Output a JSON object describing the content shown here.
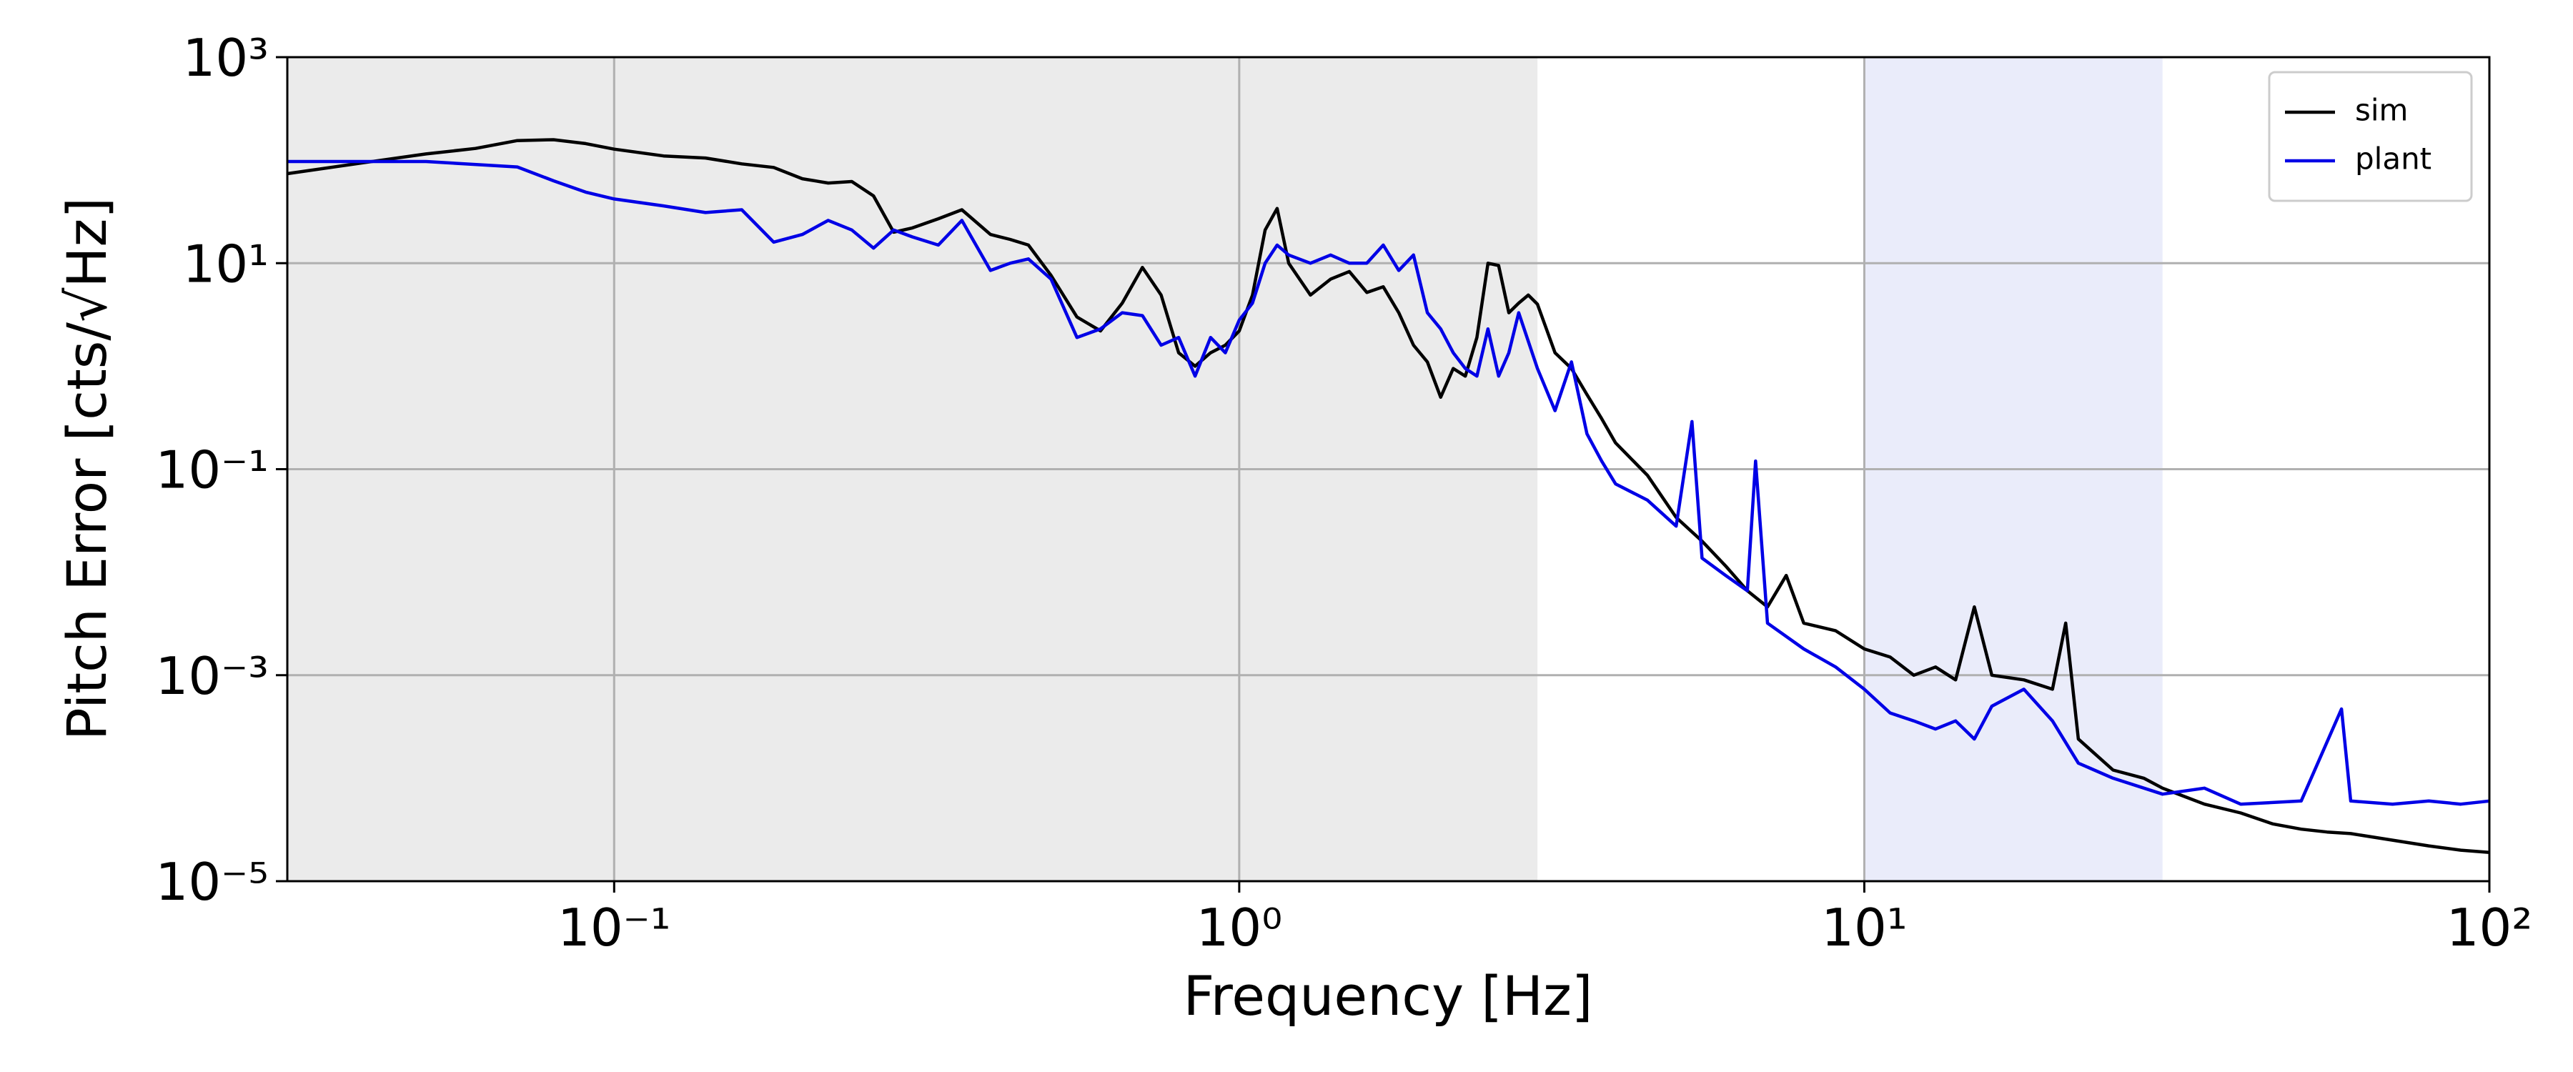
{
  "chart_data": {
    "type": "line",
    "xlabel": "Frequency [Hz]",
    "ylabel": "Pitch Error [cts/√Hz]",
    "xscale": "log",
    "yscale": "log",
    "grid": true,
    "legend": "upper right",
    "xlim": [
      0.03,
      100
    ],
    "ylim": [
      1e-05,
      1000
    ],
    "xticks": [
      {
        "value": 0.1,
        "label": "10⁻¹"
      },
      {
        "value": 1,
        "label": "10⁰"
      },
      {
        "value": 10,
        "label": "10¹"
      },
      {
        "value": 100,
        "label": "10²"
      }
    ],
    "yticks": [
      {
        "value": 1e-05,
        "label": "10⁻⁵"
      },
      {
        "value": 0.001,
        "label": "10⁻³"
      },
      {
        "value": 0.1,
        "label": "10⁻¹"
      },
      {
        "value": 10,
        "label": "10¹"
      },
      {
        "value": 1000,
        "label": "10³"
      }
    ],
    "shaded_regions": [
      {
        "x": [
          0.03,
          3
        ],
        "color": "#ebebeb"
      },
      {
        "x": [
          10,
          30
        ],
        "color": "#eaecfa"
      }
    ],
    "series": [
      {
        "name": "sim",
        "color": "#000000",
        "x": [
          0.03,
          0.04,
          0.05,
          0.06,
          0.07,
          0.08,
          0.09,
          0.1,
          0.12,
          0.14,
          0.16,
          0.18,
          0.2,
          0.22,
          0.24,
          0.26,
          0.28,
          0.3,
          0.33,
          0.36,
          0.4,
          0.43,
          0.46,
          0.5,
          0.55,
          0.6,
          0.65,
          0.7,
          0.75,
          0.8,
          0.85,
          0.9,
          0.95,
          1.0,
          1.05,
          1.1,
          1.15,
          1.2,
          1.3,
          1.4,
          1.5,
          1.6,
          1.7,
          1.8,
          1.9,
          2.0,
          2.1,
          2.2,
          2.3,
          2.4,
          2.5,
          2.6,
          2.7,
          2.8,
          2.9,
          3.0,
          3.2,
          3.4,
          3.6,
          3.8,
          4.0,
          4.5,
          5.0,
          5.5,
          6.0,
          6.5,
          7.0,
          7.5,
          8.0,
          9,
          10,
          11,
          12,
          13,
          14,
          15,
          16,
          18,
          20,
          21,
          22,
          25,
          28,
          30,
          35,
          40,
          45,
          50,
          55,
          60,
          70,
          80,
          90,
          100
        ],
        "values": [
          74,
          95,
          115,
          130,
          155,
          158,
          145,
          128,
          110,
          105,
          92,
          85,
          66,
          60,
          62,
          45,
          20,
          22,
          27,
          33,
          19,
          17,
          15,
          7.6,
          3,
          2.2,
          4.1,
          9.1,
          4.9,
          1.35,
          1.0,
          1.35,
          1.6,
          2.2,
          4.9,
          21,
          34,
          10,
          4.9,
          7,
          8.3,
          5.2,
          5.9,
          3.3,
          1.6,
          1.1,
          0.5,
          0.95,
          0.8,
          1.9,
          10,
          9.5,
          3.3,
          4.1,
          4.9,
          4,
          1.35,
          0.95,
          0.53,
          0.31,
          0.18,
          0.087,
          0.034,
          0.02,
          0.0115,
          0.0066,
          0.0046,
          0.0093,
          0.0032,
          0.0027,
          0.0018,
          0.0015,
          0.001,
          0.0012,
          0.0009,
          0.0046,
          0.001,
          0.0009,
          0.00073,
          0.0032,
          0.00024,
          0.00012,
          0.0001,
          8e-05,
          5.6e-05,
          4.6e-05,
          3.6e-05,
          3.2e-05,
          3e-05,
          2.9e-05,
          2.5e-05,
          2.2e-05,
          2e-05,
          1.9e-05
        ]
      },
      {
        "name": "plant",
        "color": "#0000e6",
        "x": [
          0.03,
          0.05,
          0.07,
          0.08,
          0.09,
          0.1,
          0.12,
          0.14,
          0.16,
          0.18,
          0.2,
          0.22,
          0.24,
          0.26,
          0.28,
          0.3,
          0.33,
          0.36,
          0.4,
          0.43,
          0.46,
          0.5,
          0.55,
          0.6,
          0.65,
          0.7,
          0.75,
          0.8,
          0.85,
          0.9,
          0.95,
          1.0,
          1.05,
          1.1,
          1.15,
          1.2,
          1.3,
          1.4,
          1.5,
          1.6,
          1.7,
          1.8,
          1.9,
          2.0,
          2.1,
          2.2,
          2.3,
          2.4,
          2.5,
          2.6,
          2.7,
          2.8,
          3.0,
          3.2,
          3.4,
          3.6,
          3.8,
          4.0,
          4.5,
          5.0,
          5.3,
          5.5,
          6.0,
          6.5,
          6.7,
          7.0,
          8,
          9,
          10,
          11,
          12,
          13,
          14,
          15,
          16,
          18,
          20,
          22,
          25,
          30,
          35,
          40,
          50,
          58,
          60,
          70,
          80,
          90,
          100
        ],
        "values": [
          97,
          97,
          86,
          63,
          49,
          42,
          36,
          31,
          33,
          16,
          19,
          26,
          21,
          14,
          21,
          18,
          15,
          26,
          8.5,
          10,
          11,
          7,
          1.9,
          2.3,
          3.3,
          3.1,
          1.6,
          1.9,
          0.8,
          1.9,
          1.35,
          2.8,
          4.1,
          10,
          15,
          12,
          10,
          12,
          10,
          10,
          15,
          8.5,
          12,
          3.3,
          2.3,
          1.35,
          0.95,
          0.8,
          2.3,
          0.8,
          1.35,
          3.3,
          0.95,
          0.37,
          1.1,
          0.22,
          0.12,
          0.072,
          0.05,
          0.028,
          0.29,
          0.0137,
          0.0093,
          0.0066,
          0.12,
          0.0032,
          0.0018,
          0.0012,
          0.00073,
          0.00043,
          0.00036,
          0.0003,
          0.00036,
          0.00024,
          0.0005,
          0.00073,
          0.00036,
          0.00014,
          0.0001,
          7e-05,
          8e-05,
          5.6e-05,
          6e-05,
          0.00047,
          6e-05,
          5.6e-05,
          6e-05,
          5.6e-05,
          6e-05
        ]
      }
    ]
  }
}
